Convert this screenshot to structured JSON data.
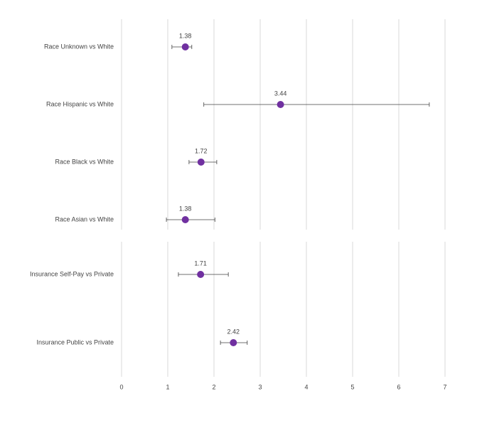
{
  "chart_data": [
    {
      "type": "forest",
      "categories": [
        "Race Unknown vs White",
        "Race Hispanic vs White",
        "Race Black vs White",
        "Race Asian vs White"
      ],
      "values": [
        1.38,
        3.44,
        1.72,
        1.38
      ],
      "lower": [
        1.09,
        1.78,
        1.46,
        0.97
      ],
      "upper": [
        1.52,
        6.66,
        2.06,
        2.02
      ],
      "color": "#7030a0",
      "xlim": [
        0,
        7
      ],
      "xticks": [
        0,
        1,
        2,
        3,
        4,
        5,
        6,
        7
      ],
      "grid": true
    },
    {
      "type": "forest",
      "categories": [
        "Insurance Self-Pay vs Private",
        "Insurance Public vs Private"
      ],
      "values": [
        1.71,
        2.42
      ],
      "lower": [
        1.23,
        2.14
      ],
      "upper": [
        2.31,
        2.72
      ],
      "color": "#7030a0",
      "xlim": [
        0,
        7
      ],
      "xticks": [
        0,
        1,
        2,
        3,
        4,
        5,
        6,
        7
      ],
      "grid": true
    }
  ]
}
